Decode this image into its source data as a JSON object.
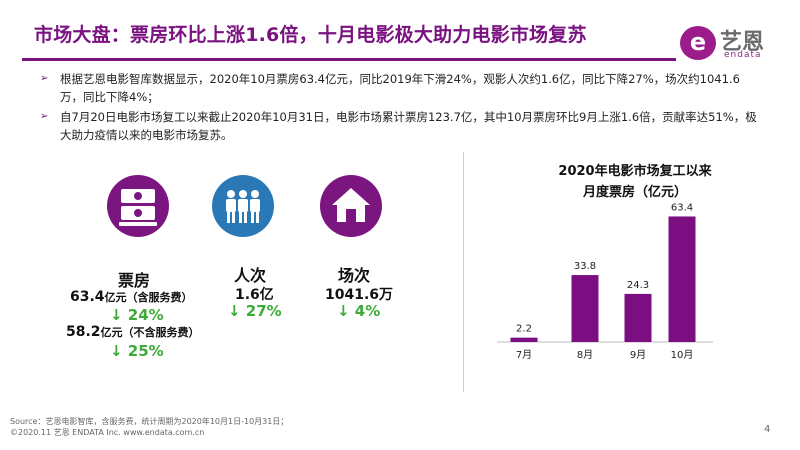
{
  "title": "市场大盘：票房环比上涨1.6倍，十月电影极大助力电影市场复苏",
  "logo": {
    "mark": "e",
    "cn": "艺恩",
    "en": "endata"
  },
  "bullets": [
    "根据艺恩电影智库数据显示，2020年10月票房63.4亿元，同比2019年下滑24%，观影人次约1.6亿，同比下降27%，场次约1041.6万，同比下降4%；",
    "自7月20日电影市场复工以来截止2020年10月31日，电影市场累计票房123.7亿，其中10月票房环比9月上涨1.6倍，贡献率达51%，极大助力疫情以来的电影市场复苏。"
  ],
  "bullet_marker": "➢",
  "stats": {
    "box_office": {
      "icon": "money-stack-icon",
      "label": "票房",
      "value1": "63.4",
      "unit1": "亿元（含服务费）",
      "delta1": "↓ 24%",
      "value2": "58.2",
      "unit2": "亿元（不含服务费）",
      "delta2": "↓ 25%"
    },
    "admissions": {
      "icon": "people-icon",
      "label": "人次",
      "value": "1.6亿",
      "delta": "↓ 27%"
    },
    "screenings": {
      "icon": "house-icon",
      "label": "场次",
      "value": "1041.6万",
      "delta": "↓ 4%"
    }
  },
  "colors": {
    "accent": "#7a1381",
    "bar": "#7b0f82",
    "down": "#3daa3a",
    "people": "#2a79b6"
  },
  "chart_data": {
    "type": "bar",
    "title": "2020年电影市场复工以来",
    "subtitle": "月度票房（亿元）",
    "categories": [
      "7月",
      "8月",
      "9月",
      "10月"
    ],
    "values": [
      2.2,
      33.8,
      24.3,
      63.4
    ],
    "ylim": [
      0,
      70
    ],
    "grid": false,
    "legend": "none"
  },
  "footer": {
    "line1": "Source：艺恩电影智库，含服务费，统计周期为2020年10月1日-10月31日；",
    "line2": "©2020.11 艺恩 ENDATA Inc.                          www.endata.com.cn"
  },
  "page_number": "4"
}
